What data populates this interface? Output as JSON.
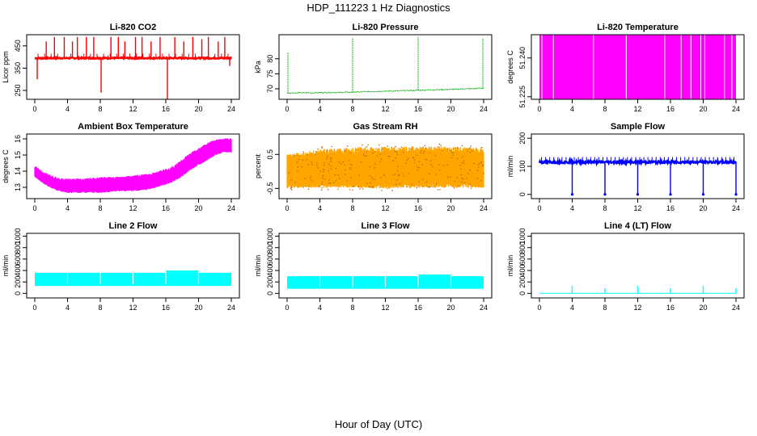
{
  "figure": {
    "title": "HDP_111223  1 Hz Diagnostics",
    "xlabel": "Hour of Day (UTC)"
  },
  "chart_data": [
    {
      "type": "line",
      "title": "Li-820 CO2",
      "ylabel": "Licor ppm",
      "color": "#ff0000",
      "xlim": [
        0,
        24
      ],
      "xticks": [
        0,
        4,
        8,
        12,
        16,
        20,
        24
      ],
      "ylim": [
        210,
        500
      ],
      "yticks": [
        250,
        350,
        450
      ],
      "baseline": 395,
      "noise": 6,
      "spikes": [
        {
          "x": 0.3,
          "y": 300
        },
        {
          "x": 1.4,
          "y": 470
        },
        {
          "x": 2.4,
          "y": 490
        },
        {
          "x": 3.6,
          "y": 490
        },
        {
          "x": 4.6,
          "y": 470
        },
        {
          "x": 5.2,
          "y": 490
        },
        {
          "x": 6.3,
          "y": 490
        },
        {
          "x": 7.2,
          "y": 490
        },
        {
          "x": 8.1,
          "y": 240
        },
        {
          "x": 9.3,
          "y": 490
        },
        {
          "x": 10.2,
          "y": 490
        },
        {
          "x": 11.0,
          "y": 470
        },
        {
          "x": 12.3,
          "y": 490
        },
        {
          "x": 13.1,
          "y": 490
        },
        {
          "x": 14.2,
          "y": 470
        },
        {
          "x": 15.3,
          "y": 490
        },
        {
          "x": 16.2,
          "y": 210
        },
        {
          "x": 17.1,
          "y": 490
        },
        {
          "x": 18.2,
          "y": 470
        },
        {
          "x": 19.3,
          "y": 490
        },
        {
          "x": 20.4,
          "y": 480
        },
        {
          "x": 21.2,
          "y": 490
        },
        {
          "x": 22.4,
          "y": 470
        },
        {
          "x": 23.2,
          "y": 490
        },
        {
          "x": 23.8,
          "y": 360
        }
      ]
    },
    {
      "type": "line",
      "title": "Li-820 Pressure",
      "ylabel": "kPa",
      "color": "#00aa00",
      "xlim": [
        0,
        24
      ],
      "xticks": [
        0,
        4,
        8,
        12,
        16,
        20,
        24
      ],
      "ylim": [
        66.5,
        88
      ],
      "yticks": [
        70,
        75,
        80
      ],
      "series": [
        {
          "name": "pressure",
          "x": [
            0,
            4,
            8,
            12,
            16,
            20,
            24
          ],
          "y": [
            68.6,
            68.7,
            68.9,
            69.2,
            69.5,
            69.8,
            70.2
          ]
        }
      ],
      "spikes": [
        {
          "x": 0.1,
          "y": 82
        },
        {
          "x": 8.0,
          "y": 87
        },
        {
          "x": 16.0,
          "y": 87.5
        },
        {
          "x": 23.9,
          "y": 87
        }
      ]
    },
    {
      "type": "area",
      "title": "Li-820 Temperature",
      "ylabel": "degrees C",
      "color": "#ff00ff",
      "xlim": [
        0,
        24
      ],
      "xticks": [
        0,
        4,
        8,
        12,
        16,
        20,
        24
      ],
      "ylim": [
        51.224,
        51.249
      ],
      "yticks": [
        51.225,
        51.24
      ],
      "tick_labels_y": [
        "51.225",
        "51.240"
      ],
      "band": [
        51.224,
        51.249
      ],
      "gaps": [
        1.7,
        6.6,
        10.6,
        15.3,
        17.3,
        18.5,
        19.7,
        20.2,
        22.6,
        23.5
      ]
    },
    {
      "type": "area",
      "title": "Ambient Box Temperature",
      "ylabel": "degrees C",
      "color": "#ff00ff",
      "xlim": [
        0,
        24
      ],
      "xticks": [
        0,
        4,
        8,
        12,
        16,
        20,
        24
      ],
      "ylim": [
        12.3,
        16.3
      ],
      "yticks": [
        13,
        14,
        15,
        16
      ],
      "series": [
        {
          "name": "upper",
          "x": [
            0,
            1,
            2,
            3,
            4,
            6,
            8,
            10,
            12,
            14,
            16,
            17,
            18,
            19,
            20,
            21,
            22,
            23,
            24
          ],
          "y": [
            14.4,
            14.0,
            13.8,
            13.6,
            13.6,
            13.6,
            13.7,
            13.7,
            13.8,
            13.9,
            14.2,
            14.4,
            14.8,
            15.2,
            15.5,
            15.8,
            16.0,
            16.1,
            16.1
          ]
        },
        {
          "name": "lower",
          "x": [
            0,
            1,
            2,
            3,
            4,
            6,
            8,
            10,
            12,
            14,
            16,
            17,
            18,
            19,
            20,
            21,
            22,
            23,
            24
          ],
          "y": [
            13.6,
            13.2,
            12.9,
            12.7,
            12.6,
            12.6,
            12.6,
            12.7,
            12.7,
            12.8,
            13.1,
            13.3,
            13.6,
            14.0,
            14.3,
            14.6,
            14.9,
            15.1,
            15.1
          ]
        }
      ]
    },
    {
      "type": "area",
      "title": "Gas Stream RH",
      "ylabel": "percent",
      "color": "#ffa500",
      "xlim": [
        0,
        24
      ],
      "xticks": [
        0,
        4,
        8,
        12,
        16,
        20,
        24
      ],
      "ylim": [
        -0.8,
        1.1
      ],
      "yticks": [
        -0.5,
        0.5
      ],
      "tick_labels_y": [
        "-0.5",
        "0.5"
      ],
      "band": [
        -0.55,
        0.8
      ],
      "series": [
        {
          "name": "upper",
          "x": [
            0,
            4,
            8,
            12,
            16,
            20,
            24
          ],
          "y": [
            0.55,
            0.72,
            0.78,
            0.8,
            0.82,
            0.8,
            0.78
          ]
        },
        {
          "name": "lower",
          "x": [
            0,
            4,
            8,
            12,
            16,
            20,
            24
          ],
          "y": [
            -0.55,
            -0.55,
            -0.55,
            -0.58,
            -0.55,
            -0.55,
            -0.55
          ]
        }
      ]
    },
    {
      "type": "line",
      "title": "Sample Flow",
      "ylabel": "ml/min",
      "color": "#0000ff",
      "xlim": [
        0,
        24
      ],
      "xticks": [
        0,
        4,
        8,
        12,
        16,
        20,
        24
      ],
      "ylim": [
        -15,
        215
      ],
      "yticks": [
        0,
        100,
        200
      ],
      "baseline": 115,
      "noise": 8,
      "dips": [
        {
          "x": 4.0,
          "y": 0
        },
        {
          "x": 8.0,
          "y": 0
        },
        {
          "x": 12.0,
          "y": 0
        },
        {
          "x": 16.0,
          "y": 0
        },
        {
          "x": 20.0,
          "y": 0
        },
        {
          "x": 24.0,
          "y": 0
        }
      ]
    },
    {
      "type": "area",
      "title": "Line 2 Flow",
      "ylabel": "ml/min",
      "color": "#00ffff",
      "xlim": [
        0,
        24
      ],
      "xticks": [
        0,
        4,
        8,
        12,
        16,
        20,
        24
      ],
      "ylim": [
        -80,
        1050
      ],
      "yticks": [
        0,
        200,
        400,
        600,
        800,
        1000
      ],
      "band": [
        130,
        360
      ],
      "bumps": [
        {
          "x0": 16,
          "x1": 20,
          "top": 400
        }
      ],
      "gaps": [
        4.0,
        8.0,
        12.0,
        16.0,
        20.0
      ]
    },
    {
      "type": "area",
      "title": "Line 3 Flow",
      "ylabel": "ml/min",
      "color": "#00ffff",
      "xlim": [
        0,
        24
      ],
      "xticks": [
        0,
        4,
        8,
        12,
        16,
        20,
        24
      ],
      "ylim": [
        -80,
        1050
      ],
      "yticks": [
        0,
        200,
        400,
        600,
        800,
        1000
      ],
      "band": [
        80,
        300
      ],
      "bumps": [
        {
          "x0": 16,
          "x1": 20,
          "top": 330
        }
      ],
      "gaps": [
        4.0,
        8.0,
        12.0,
        16.0,
        20.0
      ]
    },
    {
      "type": "line",
      "title": "Line 4 (LT) Flow",
      "ylabel": "ml/min",
      "color": "#00ffff",
      "xlim": [
        0,
        24
      ],
      "xticks": [
        0,
        4,
        8,
        12,
        16,
        20,
        24
      ],
      "ylim": [
        -80,
        1050
      ],
      "yticks": [
        0,
        200,
        400,
        600,
        800,
        1000
      ],
      "baseline": 0,
      "noise": 0,
      "spikes": [
        {
          "x": 4.0,
          "y": 130
        },
        {
          "x": 8.0,
          "y": 90
        },
        {
          "x": 12.0,
          "y": 130
        },
        {
          "x": 16.0,
          "y": 90
        },
        {
          "x": 20.0,
          "y": 130
        },
        {
          "x": 24.0,
          "y": 90
        }
      ]
    }
  ]
}
